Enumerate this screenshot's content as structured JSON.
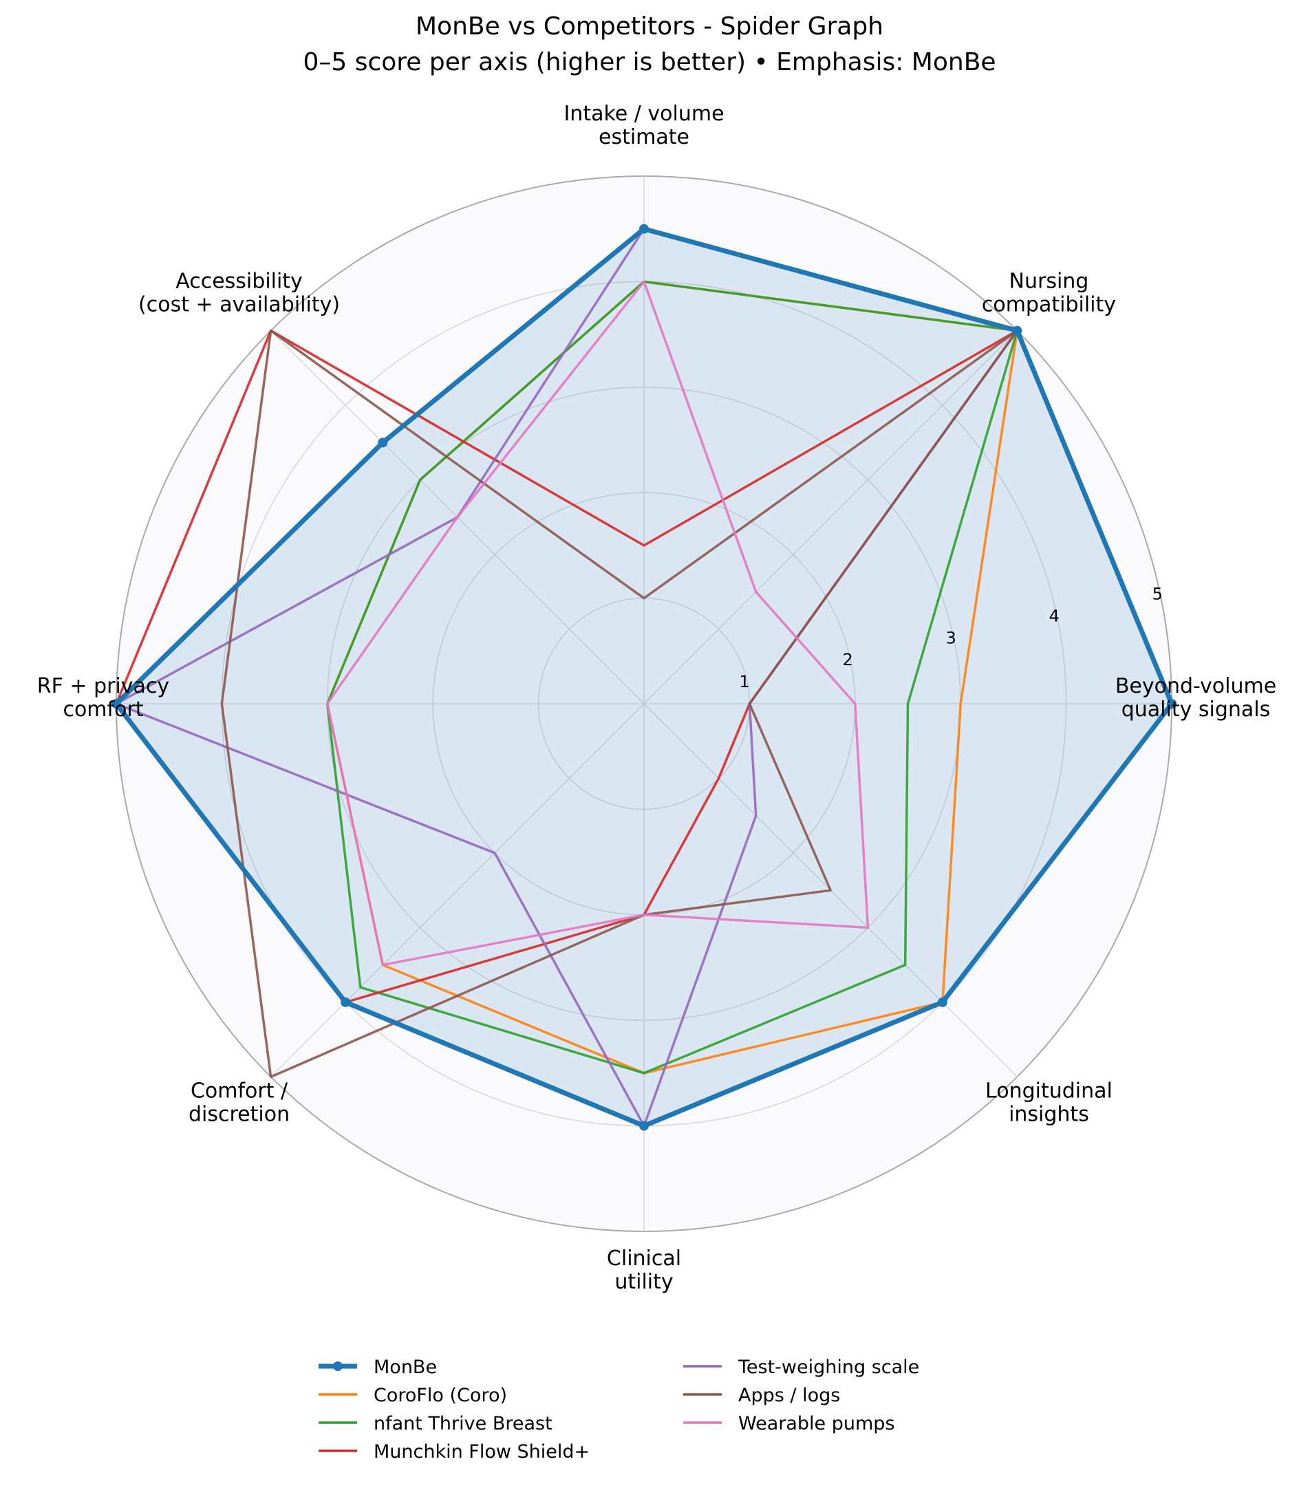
{
  "chart_data": {
    "type": "radar",
    "title": "MonBe vs Competitors - Spider Graph",
    "subtitle": "0–5 score per axis (higher is better) • Emphasis: MonBe",
    "axes": [
      [
        "Intake / volume",
        "estimate"
      ],
      [
        "Nursing",
        "compatibility"
      ],
      [
        "Beyond-volume",
        "quality signals"
      ],
      [
        "Longitudinal",
        "insights"
      ],
      [
        "Clinical",
        "utility"
      ],
      [
        "Comfort /",
        "discretion"
      ],
      [
        "RF + privacy",
        "comfort"
      ],
      [
        "Accessibility",
        "(cost + availability)"
      ]
    ],
    "rlim": [
      0,
      5
    ],
    "rticks": [
      "1",
      "2",
      "3",
      "4",
      "5"
    ],
    "grid": true,
    "legend_position": "bottom",
    "series": [
      {
        "name": "MonBe",
        "color": "#1f77b4",
        "emphasis": true,
        "values": [
          4.5,
          5,
          5,
          4,
          4,
          4,
          5,
          3.5
        ]
      },
      {
        "name": "CoroFlo (Coro)",
        "color": "#ff7f0e",
        "values": [
          4,
          5,
          3,
          4,
          3.5,
          3.5,
          3,
          3
        ]
      },
      {
        "name": "nfant Thrive Breast",
        "color": "#2ca02c",
        "values": [
          4,
          5,
          2.5,
          3.5,
          3.5,
          3.8,
          3,
          3
        ]
      },
      {
        "name": "Munchkin Flow Shield+",
        "color": "#d62728",
        "values": [
          1.5,
          5,
          1,
          1,
          2,
          4,
          5,
          5
        ]
      },
      {
        "name": "Test-weighing scale",
        "color": "#9467bd",
        "values": [
          4.5,
          5,
          1,
          1.5,
          4,
          2,
          5,
          2.5
        ]
      },
      {
        "name": "Apps / logs",
        "color": "#8c564b",
        "values": [
          1,
          5,
          1,
          2.5,
          2,
          5,
          4,
          5
        ]
      },
      {
        "name": "Wearable pumps",
        "color": "#e377c2",
        "values": [
          4,
          1.5,
          2,
          3,
          2,
          3.5,
          3,
          2.5
        ]
      }
    ]
  }
}
